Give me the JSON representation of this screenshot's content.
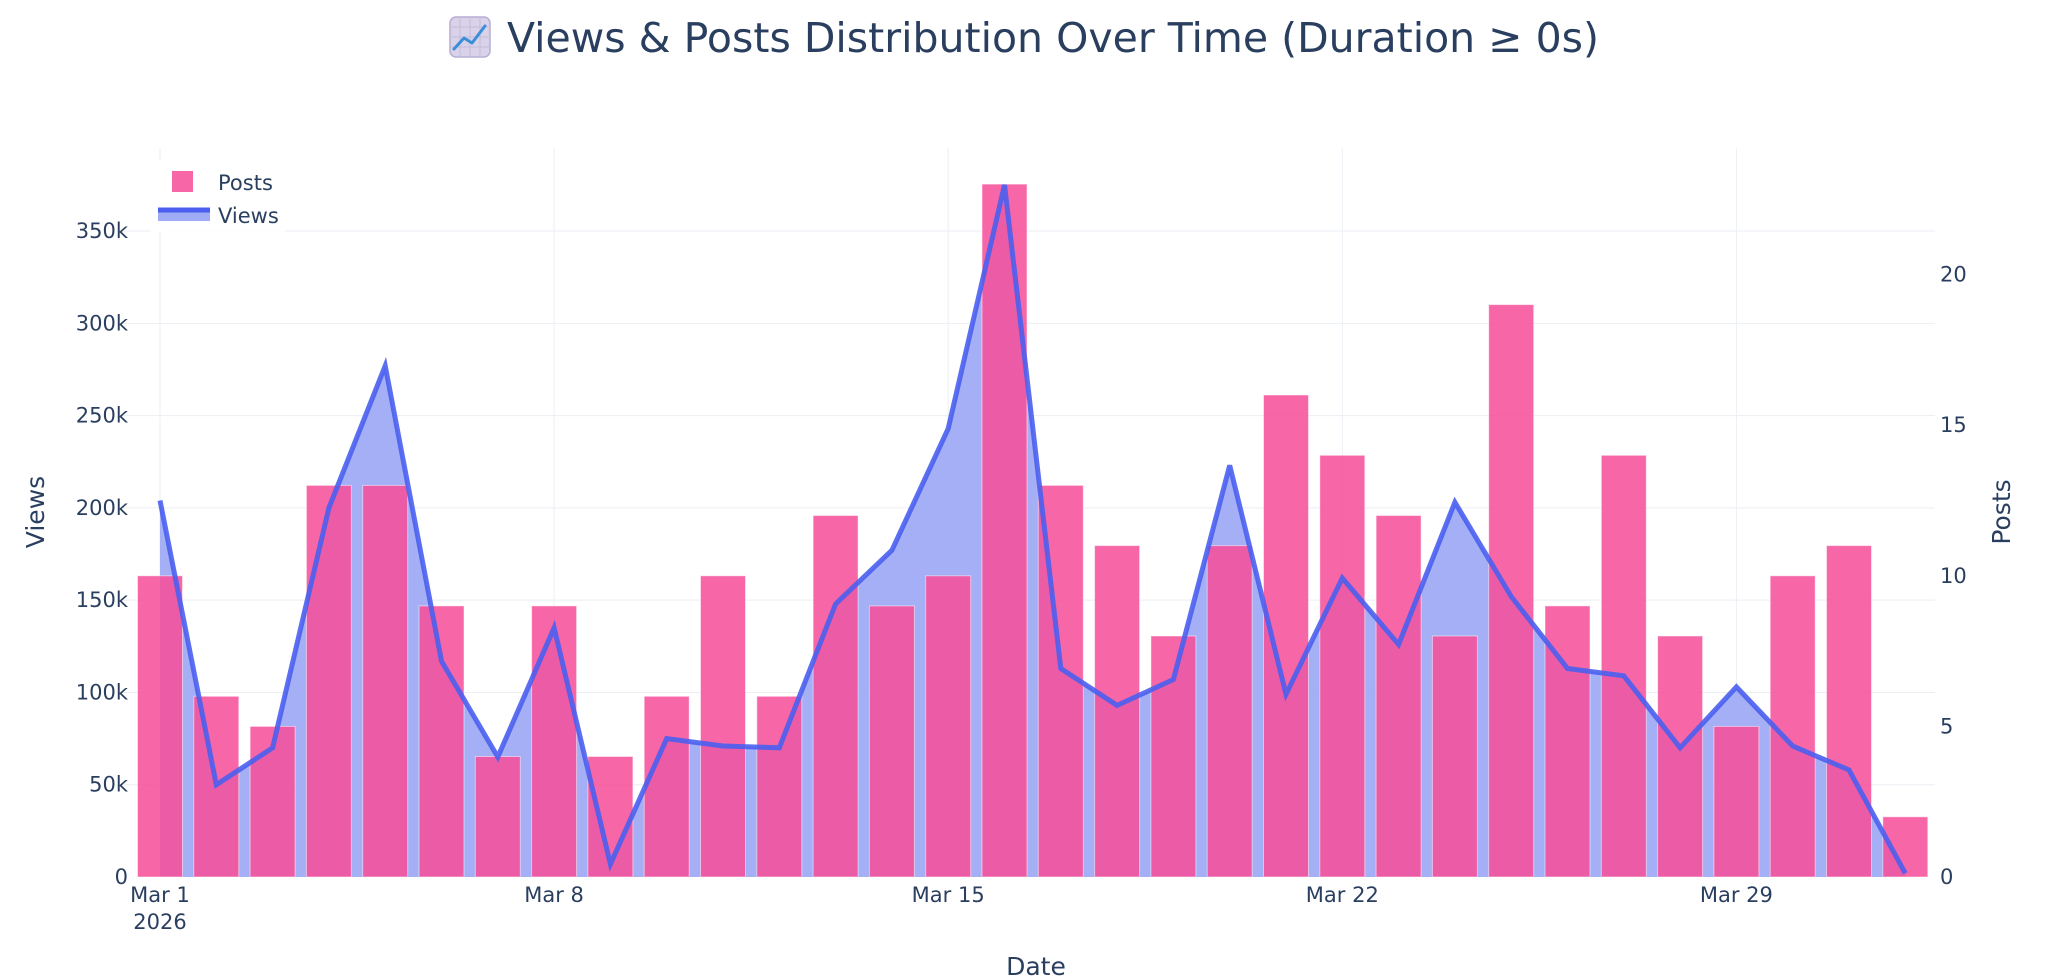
{
  "title": "Views & Posts Distribution Over Time (Duration ≥ 0s)",
  "title_icon": "chart-increasing-icon",
  "colors": {
    "views_line": "#4a5ff0",
    "views_fill": "#9fabf4",
    "posts_bar": "#f6519b",
    "text": "#2a3f5f",
    "grid": "#ebeef3"
  },
  "chart_data": {
    "type": "bar+line",
    "title": "Views & Posts Distribution Over Time (Duration ≥ 0s)",
    "xlabel": "Date",
    "ylabel_left": "Views",
    "ylabel_right": "Posts",
    "x": [
      "Mar 1",
      "Mar 2",
      "Mar 3",
      "Mar 4",
      "Mar 5",
      "Mar 6",
      "Mar 7",
      "Mar 8",
      "Mar 9",
      "Mar 10",
      "Mar 11",
      "Mar 12",
      "Mar 13",
      "Mar 14",
      "Mar 15",
      "Mar 16",
      "Mar 17",
      "Mar 18",
      "Mar 19",
      "Mar 20",
      "Mar 21",
      "Mar 22",
      "Mar 23",
      "Mar 24",
      "Mar 25",
      "Mar 26",
      "Mar 27",
      "Mar 28",
      "Mar 29",
      "Mar 30",
      "Mar 31",
      "Apr 1"
    ],
    "x_ticks": [
      {
        "index": 0,
        "label": "Mar 1",
        "sublabel": "2026"
      },
      {
        "index": 7,
        "label": "Mar 8",
        "sublabel": ""
      },
      {
        "index": 14,
        "label": "Mar 15",
        "sublabel": ""
      },
      {
        "index": 21,
        "label": "Mar 22",
        "sublabel": ""
      },
      {
        "index": 28,
        "label": "Mar 29",
        "sublabel": ""
      }
    ],
    "y_left": {
      "range": [
        0,
        395000
      ],
      "ticks": [
        0,
        50000,
        100000,
        150000,
        200000,
        250000,
        300000,
        350000
      ],
      "tick_labels": [
        "0",
        "50k",
        "100k",
        "150k",
        "200k",
        "250k",
        "300k",
        "350k"
      ]
    },
    "y_right": {
      "range": [
        0,
        24.2
      ],
      "ticks": [
        0,
        5,
        10,
        15,
        20
      ],
      "tick_labels": [
        "0",
        "5",
        "10",
        "15",
        "20"
      ]
    },
    "series": [
      {
        "name": "Posts",
        "type": "bar",
        "axis": "right",
        "values": [
          10,
          6,
          5,
          13,
          13,
          9,
          4,
          9,
          4,
          6,
          10,
          6,
          12,
          9,
          10,
          23,
          13,
          11,
          8,
          11,
          16,
          14,
          12,
          8,
          19,
          9,
          14,
          8,
          5,
          10,
          11,
          2
        ]
      },
      {
        "name": "Views",
        "type": "area-line",
        "axis": "left",
        "values": [
          204000,
          50000,
          70000,
          200000,
          277000,
          117000,
          65000,
          135000,
          7000,
          75000,
          71000,
          70000,
          148000,
          177000,
          243000,
          375000,
          113000,
          93000,
          107000,
          223000,
          99000,
          162000,
          126000,
          203000,
          152000,
          113000,
          109000,
          70000,
          103000,
          71000,
          58000,
          2000
        ]
      }
    ],
    "legend": {
      "position": "top-left",
      "entries": [
        "Posts",
        "Views"
      ]
    },
    "grid": true
  }
}
